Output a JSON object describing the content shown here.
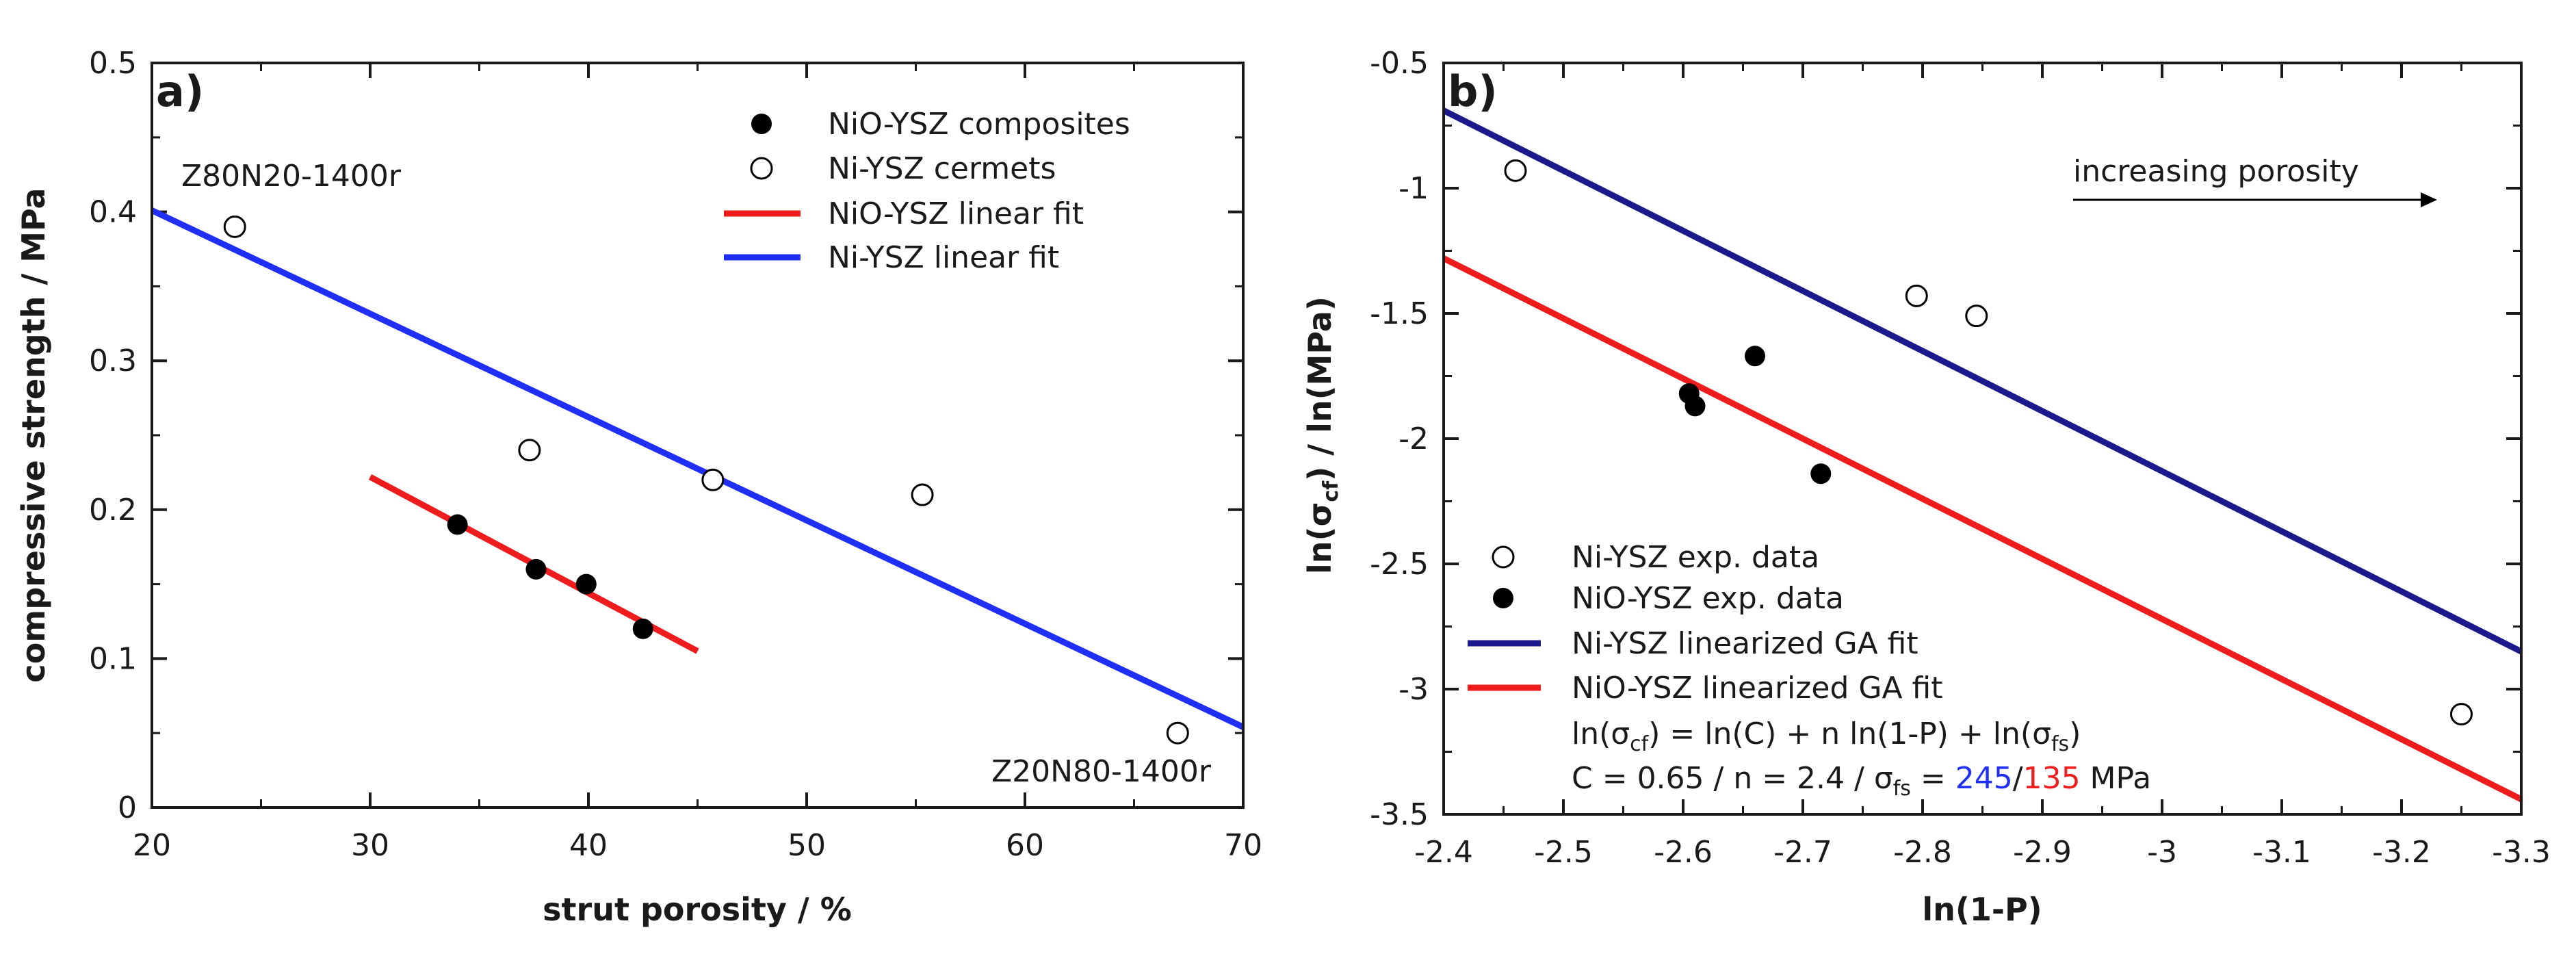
{
  "chart_data": [
    {
      "type": "scatter",
      "panel_label": "a)",
      "xlabel": "strut porosity / %",
      "ylabel": "compressive strength / MPa",
      "xlim": [
        20,
        70
      ],
      "ylim": [
        0,
        0.5
      ],
      "xticks": [
        20,
        30,
        40,
        50,
        60,
        70
      ],
      "yticks": [
        0,
        0.1,
        0.2,
        0.3,
        0.4,
        0.5
      ],
      "xtick_labels": [
        "20",
        "30",
        "40",
        "50",
        "60",
        "70"
      ],
      "ytick_labels": [
        "0",
        "0.1",
        "0.2",
        "0.3",
        "0.4",
        "0.5"
      ],
      "series": [
        {
          "name": "NiO-YSZ composites",
          "marker": "filled-circle",
          "color": "#000000",
          "x": [
            34,
            37.6,
            39.9,
            42.5
          ],
          "y": [
            0.19,
            0.16,
            0.15,
            0.12
          ]
        },
        {
          "name": "Ni-YSZ cermets",
          "marker": "open-circle",
          "color": "#000000",
          "x": [
            23.8,
            37.3,
            45.7,
            55.3,
            67
          ],
          "y": [
            0.39,
            0.24,
            0.22,
            0.21,
            0.05
          ]
        },
        {
          "name": "NiO-YSZ linear fit",
          "marker": "line",
          "color": "#ee1c1c",
          "x": [
            30,
            45
          ],
          "y": [
            0.222,
            0.105
          ]
        },
        {
          "name": "Ni-YSZ linear fit",
          "marker": "line",
          "color": "#1f2ff5",
          "x": [
            20,
            70
          ],
          "y": [
            0.401,
            0.054
          ]
        }
      ],
      "annotations": [
        "Z80N20-1400r",
        "Z20N80-1400r"
      ]
    },
    {
      "type": "scatter",
      "panel_label": "b)",
      "xlabel": "ln(1-P)",
      "ylabel": "ln(σcf) / ln(MPa)",
      "xlim": [
        -2.4,
        -3.3
      ],
      "ylim": [
        -3.5,
        -0.5
      ],
      "xticks": [
        -2.4,
        -2.5,
        -2.6,
        -2.7,
        -2.8,
        -2.9,
        -3,
        -3.1,
        -3.2,
        -3.3
      ],
      "yticks": [
        -3.5,
        -3,
        -2.5,
        -2,
        -1.5,
        -1,
        -0.5
      ],
      "xtick_labels": [
        "-2.4",
        "-2.5",
        "-2.6",
        "-2.7",
        "-2.8",
        "-2.9",
        "-3",
        "-3.1",
        "-3.2",
        "-3.3"
      ],
      "ytick_labels": [
        "-3.5",
        "-3",
        "-2.5",
        "-2",
        "-1.5",
        "-1",
        "-0.5"
      ],
      "series": [
        {
          "name": "Ni-YSZ exp. data",
          "marker": "open-circle",
          "color": "#000000",
          "x": [
            -2.46,
            -2.795,
            -2.845,
            -3.25
          ],
          "y": [
            -0.93,
            -1.43,
            -1.51,
            -3.1
          ]
        },
        {
          "name": "NiO-YSZ exp. data",
          "marker": "filled-circle",
          "color": "#000000",
          "x": [
            -2.605,
            -2.61,
            -2.66,
            -2.715
          ],
          "y": [
            -1.82,
            -1.87,
            -1.67,
            -2.14
          ]
        },
        {
          "name": "Ni-YSZ linearized GA fit",
          "marker": "line",
          "color": "#1a1a8c",
          "x": [
            -2.4,
            -3.3
          ],
          "y": [
            -0.69,
            -2.85
          ]
        },
        {
          "name": "NiO-YSZ linearized GA fit",
          "marker": "line",
          "color": "#ee1c1c",
          "x": [
            -2.4,
            -3.3
          ],
          "y": [
            -1.28,
            -3.44
          ]
        }
      ],
      "arrow_label": "increasing porosity",
      "equation": {
        "lhs": "ln(σcf)",
        "rhs": "= ln(C) + n ln(1-P) + ln(σfs)"
      },
      "params": {
        "prefix": "C = 0.65 / n = 2.4 / σfs = ",
        "value1": "245",
        "value1_color": "#1f2ff5",
        "separator": "/",
        "value2": "135",
        "value2_color": "#ee1c1c",
        "unit": " MPa"
      }
    }
  ]
}
